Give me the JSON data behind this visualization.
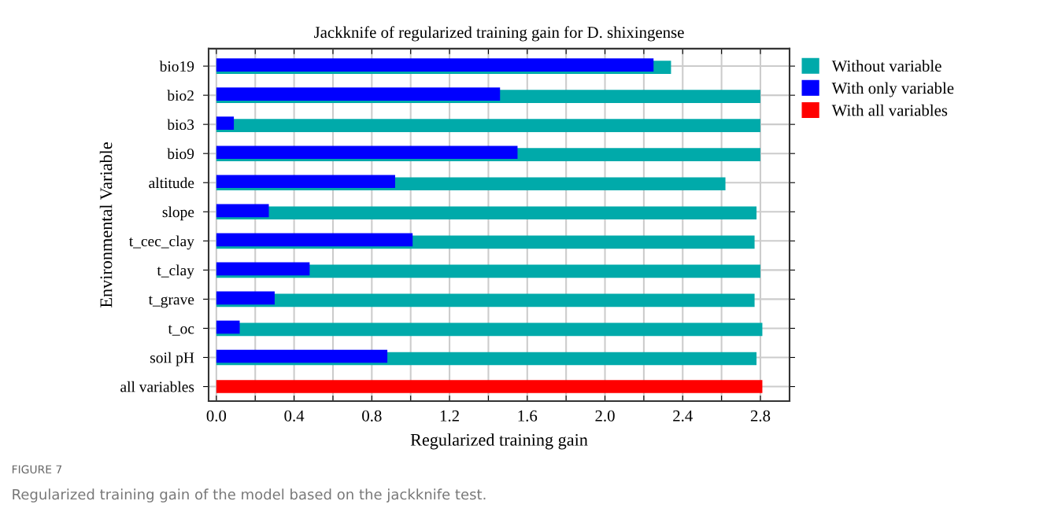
{
  "chart_data": {
    "type": "bar",
    "orientation": "horizontal",
    "title": "Jackknife of regularized training gain for D. shixingense",
    "xlabel": "Regularized training gain",
    "ylabel": "Environmental Variable",
    "categories": [
      "bio19",
      "bio2",
      "bio3",
      "bio9",
      "altitude",
      "slope",
      "t_cec_clay",
      "t_clay",
      "t_grave",
      "t_oc",
      "soil pH",
      "all variables"
    ],
    "series": [
      {
        "name": "Without variable",
        "color": "#00aaaa",
        "values": [
          2.34,
          2.8,
          2.8,
          2.8,
          2.62,
          2.78,
          2.77,
          2.8,
          2.77,
          2.81,
          2.78,
          null
        ]
      },
      {
        "name": "With only variable",
        "color": "#0000ff",
        "values": [
          2.25,
          1.46,
          0.09,
          1.55,
          0.92,
          0.27,
          1.01,
          0.48,
          0.3,
          0.12,
          0.88,
          null
        ]
      },
      {
        "name": "With all variables",
        "color": "#ff0000",
        "values": [
          null,
          null,
          null,
          null,
          null,
          null,
          null,
          null,
          null,
          null,
          null,
          2.81
        ]
      }
    ],
    "xlim": [
      -0.04,
      2.95
    ],
    "xticks": [
      {
        "value": 0,
        "label": "0.0"
      },
      {
        "value": 0.2,
        "label": null
      },
      0.4,
      {
        "value": 0.6,
        "label": null
      },
      0.8,
      {
        "value": 1.0,
        "label": null
      },
      1.2,
      {
        "value": 1.4,
        "label": null
      },
      1.6,
      {
        "value": 1.8,
        "label": null
      },
      {
        "value": 2,
        "label": "2.0"
      },
      {
        "value": 2.2,
        "label": null
      },
      2.4,
      {
        "value": 2.6,
        "label": null
      },
      2.8
    ],
    "grid": true,
    "legend": "top right",
    "annotations": [
      "FIGURE 7",
      "Regularized training gain of the model based on the jackknife test."
    ]
  }
}
